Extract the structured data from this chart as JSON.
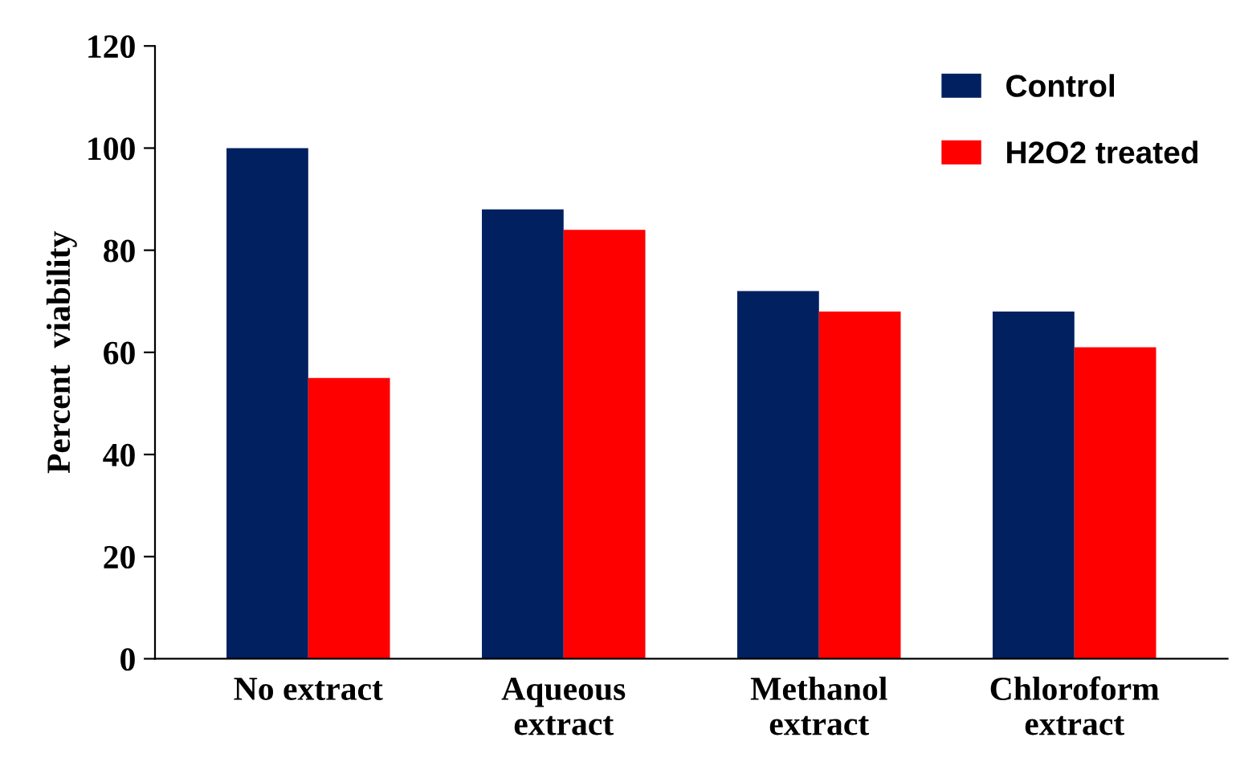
{
  "chart_data": {
    "type": "bar",
    "ylabel": "Percent  viability",
    "categories": [
      "No extract",
      "Aqueous\nextract",
      "Methanol\nextract",
      "Chloroform\nextract"
    ],
    "series": [
      {
        "name": "Control",
        "color": "#002060",
        "values": [
          100,
          88,
          72,
          68
        ]
      },
      {
        "name": "H2O2 treated",
        "color": "#ff0000",
        "values": [
          55,
          84,
          68,
          61
        ]
      }
    ],
    "ylim": [
      0,
      120
    ],
    "yticks": [
      0,
      20,
      40,
      60,
      80,
      100,
      120
    ],
    "grid": false,
    "legend": "top right"
  }
}
